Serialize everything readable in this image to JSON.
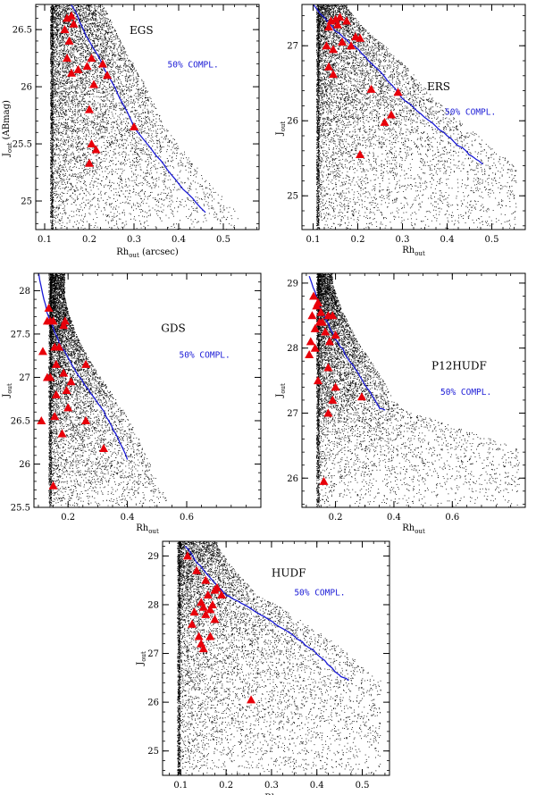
{
  "chart_data": [
    {
      "type": "scatter",
      "panel": "EGS",
      "title": "EGS",
      "xlabel_main": "Rh",
      "xlabel_sub": "out",
      "xlabel_suffix": " (arcsec)",
      "ylabel_main": "J",
      "ylabel_sub": "out",
      "ylabel_suffix": " (ABmag)",
      "xlim": [
        0.08,
        0.58
      ],
      "ylim": [
        24.75,
        26.72
      ],
      "xticks": [
        0.1,
        0.2,
        0.3,
        0.4,
        0.5
      ],
      "xtick_labels": [
        "0.1",
        "0.2",
        "0.3",
        "0.4",
        "0.5"
      ],
      "yticks": [
        25,
        25.5,
        26,
        26.5
      ],
      "ytick_labels": [
        "25",
        "25.5",
        "26",
        "26.5"
      ],
      "completeness_label": "50% COMPL.",
      "completeness_color": "#1a1ad6",
      "marker_color": "#e8000a",
      "point_color": "#000000",
      "completeness_curve": {
        "x": [
          0.16,
          0.2,
          0.25,
          0.3,
          0.35,
          0.4,
          0.46
        ],
        "y": [
          26.72,
          26.4,
          26.05,
          25.65,
          25.4,
          25.15,
          24.9
        ]
      },
      "red_sources": {
        "x": [
          0.15,
          0.16,
          0.145,
          0.165,
          0.155,
          0.15,
          0.16,
          0.205,
          0.23,
          0.195,
          0.175,
          0.24,
          0.21,
          0.2,
          0.3,
          0.205,
          0.215,
          0.2
        ],
        "y": [
          26.6,
          26.62,
          26.5,
          26.55,
          26.4,
          26.25,
          26.12,
          26.25,
          26.2,
          26.18,
          26.15,
          26.1,
          26.02,
          25.8,
          25.65,
          25.5,
          25.45,
          25.33
        ]
      }
    },
    {
      "type": "scatter",
      "panel": "ERS",
      "title": "ERS",
      "xlabel_main": "Rh",
      "xlabel_sub": "out",
      "xlabel_suffix": "",
      "ylabel_main": "J",
      "ylabel_sub": "out",
      "ylabel_suffix": "",
      "xlim": [
        0.075,
        0.575
      ],
      "ylim": [
        24.55,
        27.55
      ],
      "xticks": [
        0.1,
        0.2,
        0.3,
        0.4,
        0.5
      ],
      "xtick_labels": [
        "0.1",
        "0.2",
        "0.3",
        "0.4",
        "0.5"
      ],
      "yticks": [
        25,
        26,
        27
      ],
      "ytick_labels": [
        "25",
        "26",
        "27"
      ],
      "completeness_label": "50% COMPL.",
      "completeness_color": "#1a1ad6",
      "marker_color": "#e8000a",
      "point_color": "#000000",
      "completeness_curve": {
        "x": [
          0.1,
          0.15,
          0.2,
          0.25,
          0.3,
          0.35,
          0.4,
          0.45,
          0.48
        ],
        "y": [
          27.55,
          27.2,
          26.95,
          26.65,
          26.3,
          26.05,
          25.8,
          25.55,
          25.42
        ]
      },
      "red_sources": {
        "x": [
          0.14,
          0.15,
          0.16,
          0.175,
          0.155,
          0.135,
          0.195,
          0.205,
          0.165,
          0.185,
          0.13,
          0.145,
          0.135,
          0.145,
          0.23,
          0.29,
          0.275,
          0.26,
          0.205
        ],
        "y": [
          27.33,
          27.35,
          27.38,
          27.33,
          27.28,
          27.25,
          27.12,
          27.1,
          27.05,
          27.0,
          27.0,
          26.95,
          26.72,
          26.62,
          26.42,
          26.38,
          26.08,
          25.98,
          25.55
        ]
      }
    },
    {
      "type": "scatter",
      "panel": "GDS",
      "title": "GDS",
      "xlabel_main": "Rh",
      "xlabel_sub": "out",
      "xlabel_suffix": "",
      "ylabel_main": "J",
      "ylabel_sub": "out",
      "ylabel_suffix": "",
      "xlim": [
        0.085,
        0.85
      ],
      "ylim": [
        25.5,
        28.2
      ],
      "xticks": [
        0.2,
        0.4,
        0.6
      ],
      "xtick_labels": [
        "0.2",
        "0.4",
        "0.6"
      ],
      "yticks": [
        25.5,
        26,
        26.5,
        27,
        27.5,
        28
      ],
      "ytick_labels": [
        "25.5",
        "26",
        "26.5",
        "27",
        "27.5",
        "28"
      ],
      "completeness_label": "50% COMPL.",
      "completeness_color": "#1a1ad6",
      "marker_color": "#e8000a",
      "point_color": "#000000",
      "completeness_curve": {
        "x": [
          0.1,
          0.13,
          0.17,
          0.22,
          0.27,
          0.32,
          0.36,
          0.4
        ],
        "y": [
          28.2,
          27.75,
          27.4,
          27.1,
          26.85,
          26.6,
          26.35,
          26.05
        ]
      },
      "red_sources": {
        "x": [
          0.135,
          0.14,
          0.13,
          0.15,
          0.19,
          0.185,
          0.155,
          0.17,
          0.16,
          0.26,
          0.185,
          0.115,
          0.13,
          0.14,
          0.21,
          0.16,
          0.2,
          0.195,
          0.11,
          0.155,
          0.26,
          0.18,
          0.32,
          0.15
        ],
        "y": [
          27.8,
          27.65,
          27.65,
          27.65,
          27.65,
          27.6,
          27.35,
          27.35,
          27.15,
          27.15,
          27.05,
          27.3,
          27.0,
          27.0,
          26.95,
          26.8,
          26.65,
          26.85,
          26.5,
          26.55,
          26.5,
          26.35,
          26.18,
          25.75
        ]
      }
    },
    {
      "type": "scatter",
      "panel": "P12HUDF",
      "title": "P12HUDF",
      "xlabel_main": "Rh",
      "xlabel_sub": "out",
      "xlabel_suffix": "",
      "ylabel_main": "J",
      "ylabel_sub": "out",
      "ylabel_suffix": "",
      "xlim": [
        0.085,
        0.85
      ],
      "ylim": [
        25.55,
        29.15
      ],
      "xticks": [
        0.2,
        0.4,
        0.6
      ],
      "xtick_labels": [
        "0.2",
        "0.4",
        "0.6"
      ],
      "yticks": [
        26,
        27,
        28,
        29
      ],
      "ytick_labels": [
        "26",
        "27",
        "28",
        "29"
      ],
      "completeness_label": "50% COMPL.",
      "completeness_color": "#1a1ad6",
      "marker_color": "#e8000a",
      "point_color": "#000000",
      "completeness_curve": {
        "x": [
          0.11,
          0.15,
          0.2,
          0.25,
          0.3,
          0.35,
          0.37
        ],
        "y": [
          29.1,
          28.6,
          28.15,
          27.8,
          27.45,
          27.08,
          27.05
        ]
      },
      "red_sources": {
        "x": [
          0.125,
          0.135,
          0.14,
          0.15,
          0.175,
          0.12,
          0.145,
          0.155,
          0.19,
          0.13,
          0.165,
          0.2,
          0.115,
          0.13,
          0.18,
          0.11,
          0.14,
          0.175,
          0.2,
          0.29,
          0.19,
          0.175,
          0.16
        ],
        "y": [
          28.8,
          28.65,
          28.7,
          28.55,
          28.5,
          28.5,
          28.4,
          28.4,
          28.5,
          28.3,
          28.25,
          28.2,
          28.1,
          28.0,
          28.1,
          27.9,
          27.5,
          27.7,
          27.4,
          27.25,
          27.2,
          27.0,
          25.95
        ]
      }
    },
    {
      "type": "scatter",
      "panel": "HUDF",
      "title": "HUDF",
      "xlabel_main": "Rh",
      "xlabel_sub": "out",
      "xlabel_suffix": "",
      "ylabel_main": "J",
      "ylabel_sub": "out",
      "ylabel_suffix": "",
      "xlim": [
        0.06,
        0.56
      ],
      "ylim": [
        24.5,
        29.3
      ],
      "xticks": [
        0.1,
        0.2,
        0.3,
        0.4,
        0.5
      ],
      "xtick_labels": [
        "0.1",
        "0.2",
        "0.3",
        "0.4",
        "0.5"
      ],
      "yticks": [
        25,
        26,
        27,
        28,
        29
      ],
      "ytick_labels": [
        "25",
        "26",
        "27",
        "28",
        "29"
      ],
      "completeness_label": "50% COMPL.",
      "completeness_color": "#1a1ad6",
      "marker_color": "#e8000a",
      "point_color": "#000000",
      "completeness_curve": {
        "x": [
          0.11,
          0.15,
          0.2,
          0.25,
          0.3,
          0.35,
          0.4,
          0.45,
          0.47
        ],
        "y": [
          29.2,
          28.7,
          28.2,
          27.95,
          27.65,
          27.35,
          27.0,
          26.55,
          26.45
        ]
      },
      "red_sources": {
        "x": [
          0.115,
          0.135,
          0.155,
          0.18,
          0.19,
          0.175,
          0.16,
          0.145,
          0.17,
          0.165,
          0.15,
          0.13,
          0.155,
          0.175,
          0.125,
          0.14,
          0.165,
          0.145,
          0.15,
          0.255
        ],
        "y": [
          29.0,
          28.7,
          28.5,
          28.35,
          28.2,
          28.3,
          28.2,
          28.05,
          28.0,
          27.9,
          27.95,
          27.85,
          27.8,
          27.7,
          27.6,
          27.35,
          27.35,
          27.2,
          27.1,
          26.05
        ]
      }
    }
  ]
}
